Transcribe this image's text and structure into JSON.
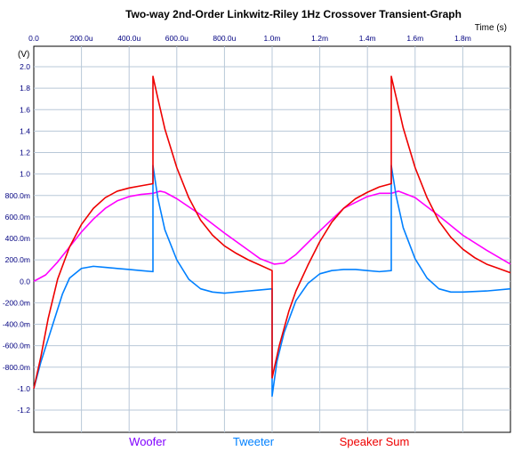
{
  "chart_data": {
    "type": "line",
    "title": "Two-way 2nd-Order Linkwitz-Riley 1Hz Crossover Transient-Graph",
    "xlabel": "Time  (s)",
    "ylabel": "(V)",
    "xlim": [
      0,
      0.002
    ],
    "ylim": [
      -1.3,
      2.1
    ],
    "x_ticks": [
      {
        "v": 0,
        "label": "0.0"
      },
      {
        "v": 0.0002,
        "label": "200.0u"
      },
      {
        "v": 0.0004,
        "label": "400.0u"
      },
      {
        "v": 0.0006,
        "label": "600.0u"
      },
      {
        "v": 0.0008,
        "label": "800.0u"
      },
      {
        "v": 0.001,
        "label": "1.0m"
      },
      {
        "v": 0.0012,
        "label": "1.2m"
      },
      {
        "v": 0.0014,
        "label": "1.4m"
      },
      {
        "v": 0.0016,
        "label": "1.6m"
      },
      {
        "v": 0.0018,
        "label": "1.8m"
      }
    ],
    "y_ticks": [
      {
        "v": 2.0,
        "label": "2.0"
      },
      {
        "v": 1.8,
        "label": "1.8"
      },
      {
        "v": 1.6,
        "label": "1.6"
      },
      {
        "v": 1.4,
        "label": "1.4"
      },
      {
        "v": 1.2,
        "label": "1.2"
      },
      {
        "v": 1.0,
        "label": "1.0"
      },
      {
        "v": 0.8,
        "label": "800.0m"
      },
      {
        "v": 0.6,
        "label": "600.0m"
      },
      {
        "v": 0.4,
        "label": "400.0m"
      },
      {
        "v": 0.2,
        "label": "200.0m"
      },
      {
        "v": 0.0,
        "label": "0.0"
      },
      {
        "v": -0.2,
        "label": "-200.0m"
      },
      {
        "v": -0.4,
        "label": "-400.0m"
      },
      {
        "v": -0.6,
        "label": "-600.0m"
      },
      {
        "v": -0.8,
        "label": "-800.0m"
      },
      {
        "v": -1.0,
        "label": "-1.0"
      },
      {
        "v": -1.2,
        "label": "-1.2"
      }
    ],
    "grid": true,
    "legend_position": "bottom",
    "series": [
      {
        "name": "Woofer",
        "color": "#ff00ff",
        "points": [
          [
            0.0,
            0.0
          ],
          [
            5e-05,
            0.06
          ],
          [
            0.0001,
            0.18
          ],
          [
            0.00015,
            0.32
          ],
          [
            0.0002,
            0.46
          ],
          [
            0.00025,
            0.58
          ],
          [
            0.0003,
            0.68
          ],
          [
            0.00035,
            0.75
          ],
          [
            0.0004,
            0.79
          ],
          [
            0.00045,
            0.81
          ],
          [
            0.0005,
            0.82
          ],
          [
            0.00053,
            0.84
          ],
          [
            0.00055,
            0.83
          ],
          [
            0.0006,
            0.77
          ],
          [
            0.0007,
            0.62
          ],
          [
            0.0008,
            0.45
          ],
          [
            0.0009,
            0.29
          ],
          [
            0.00095,
            0.21
          ],
          [
            0.00101,
            0.16
          ],
          [
            0.00105,
            0.17
          ],
          [
            0.0011,
            0.25
          ],
          [
            0.0012,
            0.47
          ],
          [
            0.0013,
            0.68
          ],
          [
            0.0014,
            0.79
          ],
          [
            0.00145,
            0.82
          ],
          [
            0.0015,
            0.82
          ],
          [
            0.00153,
            0.84
          ],
          [
            0.0016,
            0.78
          ],
          [
            0.0017,
            0.61
          ],
          [
            0.0018,
            0.43
          ],
          [
            0.0019,
            0.29
          ],
          [
            0.002,
            0.16
          ]
        ]
      },
      {
        "name": "Tweeter",
        "color": "#0080ff",
        "points": [
          [
            0.0,
            -1.0
          ],
          [
            3e-05,
            -0.75
          ],
          [
            8e-05,
            -0.4
          ],
          [
            0.00012,
            -0.12
          ],
          [
            0.00015,
            0.03
          ],
          [
            0.0002,
            0.12
          ],
          [
            0.00025,
            0.14
          ],
          [
            0.0003,
            0.13
          ],
          [
            0.00035,
            0.12
          ],
          [
            0.0004,
            0.11
          ],
          [
            0.00045,
            0.1
          ],
          [
            0.0005,
            0.09
          ],
          [
            0.0005,
            1.08
          ],
          [
            0.00052,
            0.78
          ],
          [
            0.00055,
            0.48
          ],
          [
            0.0006,
            0.2
          ],
          [
            0.00065,
            0.02
          ],
          [
            0.0007,
            -0.07
          ],
          [
            0.00075,
            -0.1
          ],
          [
            0.0008,
            -0.11
          ],
          [
            0.00085,
            -0.1
          ],
          [
            0.0009,
            -0.09
          ],
          [
            0.00095,
            -0.08
          ],
          [
            0.001,
            -0.07
          ],
          [
            0.001,
            -1.07
          ],
          [
            0.00102,
            -0.75
          ],
          [
            0.00105,
            -0.48
          ],
          [
            0.0011,
            -0.18
          ],
          [
            0.00115,
            -0.02
          ],
          [
            0.0012,
            0.07
          ],
          [
            0.00125,
            0.1
          ],
          [
            0.0013,
            0.11
          ],
          [
            0.00135,
            0.11
          ],
          [
            0.0014,
            0.1
          ],
          [
            0.00145,
            0.09
          ],
          [
            0.0015,
            0.1
          ],
          [
            0.0015,
            1.08
          ],
          [
            0.00152,
            0.8
          ],
          [
            0.00155,
            0.5
          ],
          [
            0.0016,
            0.21
          ],
          [
            0.00165,
            0.03
          ],
          [
            0.0017,
            -0.07
          ],
          [
            0.00175,
            -0.1
          ],
          [
            0.0018,
            -0.1
          ],
          [
            0.0019,
            -0.09
          ],
          [
            0.002,
            -0.07
          ]
        ]
      },
      {
        "name": "Speaker Sum",
        "color": "#ee0000",
        "points": [
          [
            0.0,
            -1.0
          ],
          [
            3e-05,
            -0.7
          ],
          [
            6e-05,
            -0.35
          ],
          [
            0.0001,
            0.02
          ],
          [
            0.00015,
            0.32
          ],
          [
            0.0002,
            0.53
          ],
          [
            0.00025,
            0.68
          ],
          [
            0.0003,
            0.78
          ],
          [
            0.00035,
            0.84
          ],
          [
            0.0004,
            0.87
          ],
          [
            0.00045,
            0.89
          ],
          [
            0.0005,
            0.91
          ],
          [
            0.0005,
            1.91
          ],
          [
            0.00052,
            1.71
          ],
          [
            0.00055,
            1.42
          ],
          [
            0.0006,
            1.06
          ],
          [
            0.00065,
            0.78
          ],
          [
            0.0007,
            0.57
          ],
          [
            0.00075,
            0.43
          ],
          [
            0.0008,
            0.33
          ],
          [
            0.00085,
            0.26
          ],
          [
            0.0009,
            0.2
          ],
          [
            0.00095,
            0.15
          ],
          [
            0.001,
            0.1
          ],
          [
            0.001,
            -0.9
          ],
          [
            0.00103,
            -0.6
          ],
          [
            0.00107,
            -0.28
          ],
          [
            0.0011,
            -0.09
          ],
          [
            0.00115,
            0.15
          ],
          [
            0.0012,
            0.37
          ],
          [
            0.00125,
            0.55
          ],
          [
            0.0013,
            0.68
          ],
          [
            0.00135,
            0.77
          ],
          [
            0.0014,
            0.83
          ],
          [
            0.00145,
            0.88
          ],
          [
            0.0015,
            0.91
          ],
          [
            0.0015,
            1.91
          ],
          [
            0.00152,
            1.72
          ],
          [
            0.00155,
            1.43
          ],
          [
            0.0016,
            1.06
          ],
          [
            0.00165,
            0.78
          ],
          [
            0.0017,
            0.56
          ],
          [
            0.00175,
            0.41
          ],
          [
            0.0018,
            0.3
          ],
          [
            0.00185,
            0.22
          ],
          [
            0.0019,
            0.16
          ],
          [
            0.00195,
            0.12
          ],
          [
            0.002,
            0.08
          ]
        ]
      }
    ]
  }
}
